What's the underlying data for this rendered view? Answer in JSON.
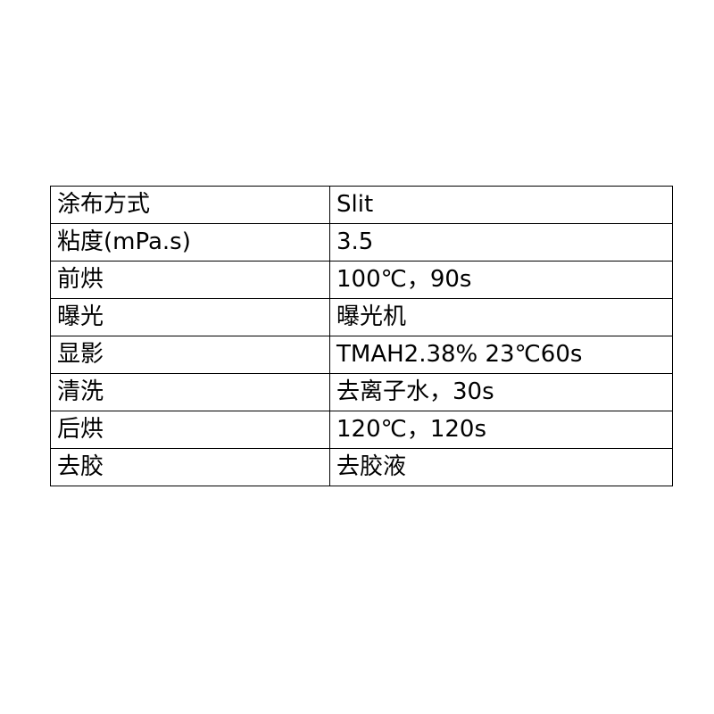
{
  "table": {
    "rows": [
      {
        "param": "涂布方式",
        "value": "Slit"
      },
      {
        "param": "粘度(mPa.s)",
        "value": "3.5"
      },
      {
        "param": "前烘",
        "value": "100℃，90s"
      },
      {
        "param": "曝光",
        "value": "曝光机"
      },
      {
        "param": "显影",
        "value": "TMAH2.38% 23℃60s"
      },
      {
        "param": "清洗",
        "value": "去离子水，30s"
      },
      {
        "param": "后烘",
        "value": "120℃，120s"
      },
      {
        "param": "去胶",
        "value": "去胶液"
      }
    ]
  }
}
